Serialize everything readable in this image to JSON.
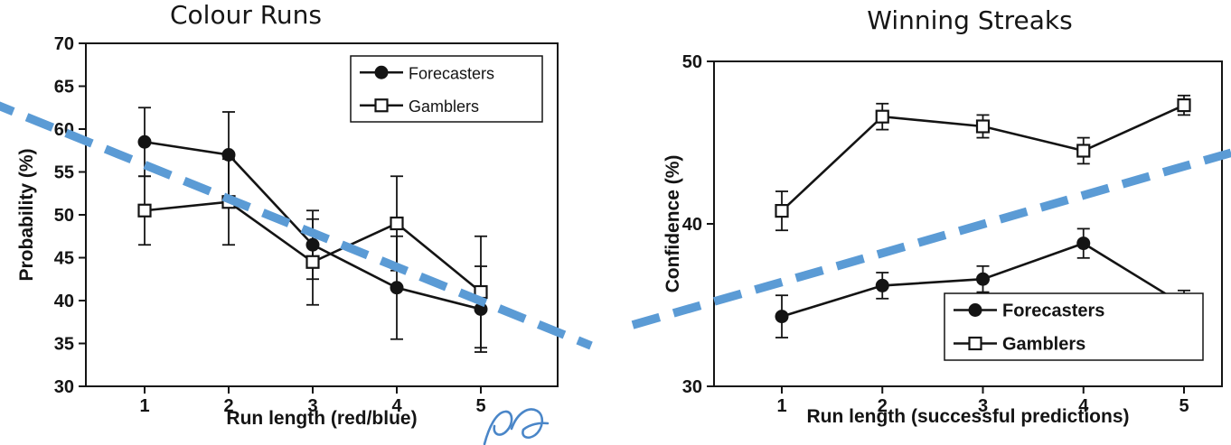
{
  "chart_data": [
    {
      "type": "line",
      "title": "Colour Runs",
      "xlabel": "Run length (red/blue)",
      "ylabel": "Probability (%)",
      "x": [
        1,
        2,
        3,
        4,
        5
      ],
      "ylim": [
        30,
        70
      ],
      "yticks": [
        30,
        35,
        40,
        45,
        50,
        55,
        60,
        65,
        70
      ],
      "grid": false,
      "error_bars": true,
      "legend_position": "top-right",
      "series": [
        {
          "name": "Forecasters",
          "marker": "filled-circle",
          "values": [
            58.5,
            57.0,
            46.5,
            41.5,
            39.0
          ],
          "error": [
            4.0,
            5.0,
            4.0,
            6.0,
            5.0
          ]
        },
        {
          "name": "Gamblers",
          "marker": "open-square",
          "values": [
            50.5,
            51.5,
            44.5,
            49.0,
            41.0
          ],
          "error": [
            4.0,
            5.0,
            5.0,
            5.5,
            6.5
          ]
        }
      ]
    },
    {
      "type": "line",
      "title": "Winning Streaks",
      "xlabel": "Run length (successful predictions)",
      "ylabel": "Confidence (%)",
      "x": [
        1,
        2,
        3,
        4,
        5
      ],
      "ylim": [
        30,
        50
      ],
      "yticks": [
        30,
        40,
        50
      ],
      "grid": false,
      "error_bars": true,
      "legend_position": "bottom-right",
      "series": [
        {
          "name": "Forecasters",
          "marker": "filled-circle",
          "values": [
            34.3,
            36.2,
            36.6,
            38.8,
            35.0
          ],
          "error": [
            1.3,
            0.8,
            0.8,
            0.9,
            0.9
          ]
        },
        {
          "name": "Gamblers",
          "marker": "open-square",
          "values": [
            40.8,
            46.6,
            46.0,
            44.5,
            47.3
          ],
          "error": [
            1.2,
            0.8,
            0.7,
            0.8,
            0.6
          ]
        }
      ]
    }
  ],
  "annotations": {
    "accent_color": "#5b9bd5",
    "ink_color": "#141414",
    "trend_lines": [
      {
        "over_chart": "Colour Runs",
        "direction": "descending",
        "style": "thick-dashed"
      },
      {
        "over_chart": "Winning Streaks",
        "direction": "ascending",
        "style": "thick-dashed"
      }
    ],
    "handwritten_scribble": {
      "color": "#4a86c8",
      "location": "bottom-center"
    }
  }
}
